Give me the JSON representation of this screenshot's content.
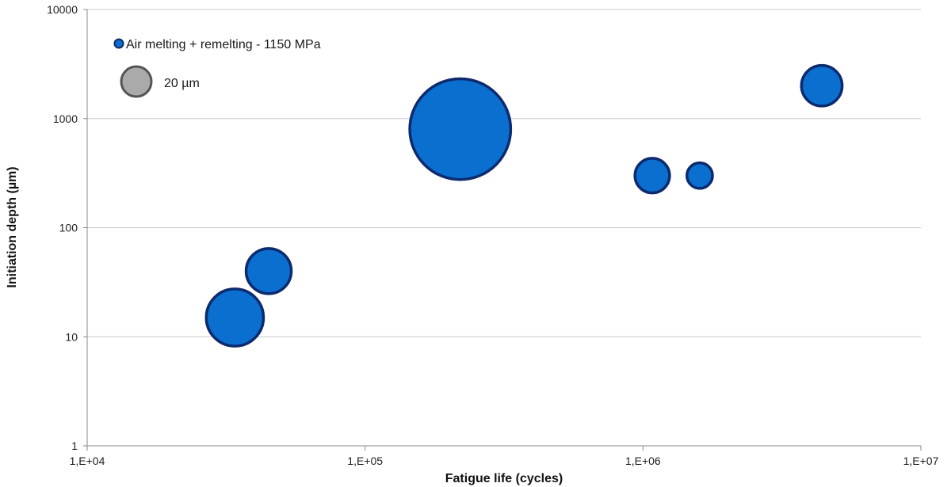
{
  "chart_data": {
    "type": "bubble",
    "x_scale": "log",
    "y_scale": "log",
    "xlim": [
      10000,
      10000000
    ],
    "ylim": [
      1,
      10000
    ],
    "x_ticks": [
      {
        "value": 10000,
        "label": "1,E+04"
      },
      {
        "value": 100000,
        "label": "1,E+05"
      },
      {
        "value": 1000000,
        "label": "1,E+06"
      },
      {
        "value": 10000000,
        "label": "1,E+07"
      }
    ],
    "y_ticks": [
      {
        "value": 1,
        "label": "1"
      },
      {
        "value": 10,
        "label": "10"
      },
      {
        "value": 100,
        "label": "100"
      },
      {
        "value": 1000,
        "label": "1000"
      },
      {
        "value": 10000,
        "label": "10000"
      }
    ],
    "xlabel": "Fatigue life (cycles)",
    "ylabel": "Initiation depth (µm)",
    "grid": "horizontal",
    "legend_position": "top-left",
    "series": [
      {
        "name": "Air melting + remelting - 1150 MPa",
        "color": "#0a6fcf",
        "edge_color": "#0d2a6e",
        "points": [
          {
            "x": 34000,
            "y": 15,
            "size": 38
          },
          {
            "x": 45000,
            "y": 40,
            "size": 30
          },
          {
            "x": 220000,
            "y": 800,
            "size": 67
          },
          {
            "x": 1080000,
            "y": 300,
            "size": 23
          },
          {
            "x": 1600000,
            "y": 300,
            "size": 17
          },
          {
            "x": 4400000,
            "y": 2000,
            "size": 27
          }
        ]
      }
    ],
    "size_reference": {
      "label": "20 µm",
      "size": 20,
      "color": "#aaaaaa",
      "edge_color": "#555555"
    }
  }
}
